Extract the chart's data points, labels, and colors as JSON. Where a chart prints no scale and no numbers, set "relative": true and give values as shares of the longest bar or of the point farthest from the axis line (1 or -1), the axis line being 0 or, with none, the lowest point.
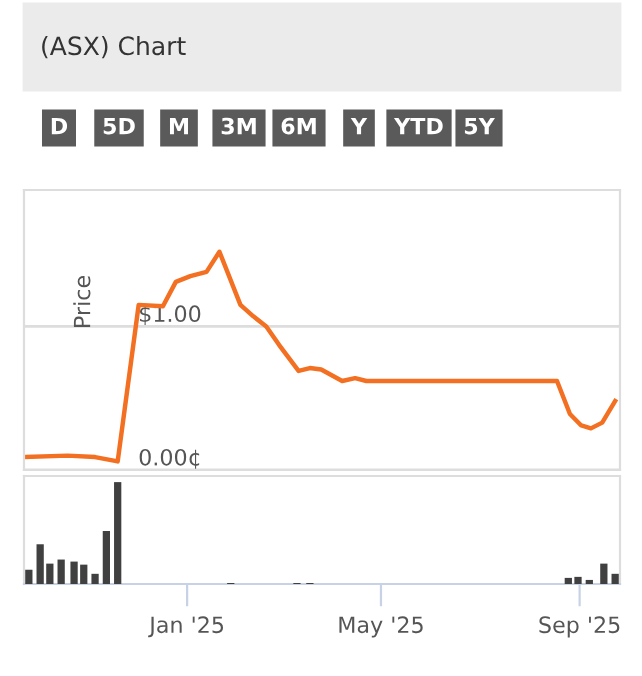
{
  "chart_data": [
    {
      "type": "line",
      "title": "(ASX) Chart",
      "ylabel": "Price",
      "annotations": [
        "D",
        "5D",
        "M",
        "3M",
        "6M",
        "Y",
        "YTD",
        "5Y"
      ],
      "x": [
        "2024-09-23",
        "2024-10-19",
        "2024-11-05",
        "2024-11-19",
        "2024-12-02",
        "2024-12-17",
        "2024-12-25",
        "2025-01-03",
        "2025-01-13",
        "2025-01-21",
        "2025-02-03",
        "2025-02-11",
        "2025-02-19",
        "2025-02-27",
        "2025-03-11",
        "2025-03-18",
        "2025-03-25",
        "2025-04-07",
        "2025-04-15",
        "2025-04-22",
        "2025-08-18",
        "2025-08-26",
        "2025-09-02",
        "2025-09-08",
        "2025-09-15",
        "2025-09-23"
      ],
      "series": [
        {
          "color": "#f36f21",
          "values": [
            0.09,
            0.1,
            0.09,
            0.06,
            1.15,
            1.14,
            1.31,
            1.35,
            1.38,
            1.52,
            1.15,
            1.07,
            1.0,
            0.87,
            0.69,
            0.71,
            0.7,
            0.62,
            0.64,
            0.62,
            0.62,
            0.39,
            0.31,
            0.29,
            0.33,
            0.48
          ]
        }
      ],
      "xlim": [
        "2024-09-22",
        "2025-09-26"
      ],
      "ylim": [
        0,
        1.95
      ],
      "yticks": [
        {
          "value": 0,
          "label": "0.00¢"
        },
        {
          "value": 1,
          "label": "$1.00"
        }
      ],
      "grid": "y",
      "tick_labels": "y",
      "line_style": "solid",
      "marker": "none"
    },
    {
      "type": "bar",
      "relative": true,
      "x": [
        "2024-09-25",
        "2024-10-02",
        "2024-10-08",
        "2024-10-15",
        "2024-10-23",
        "2024-10-29",
        "2024-11-05",
        "2024-11-12",
        "2024-11-19",
        "2025-01-28",
        "2025-03-10",
        "2025-03-18",
        "2025-08-25",
        "2025-08-31",
        "2025-09-07",
        "2025-09-16",
        "2025-09-23"
      ],
      "series": [
        {
          "color": "#404040",
          "values": [
            0.14,
            0.39,
            0.2,
            0.24,
            0.22,
            0.19,
            0.1,
            0.52,
            1,
            0.01,
            0.01,
            0.01,
            0.06,
            0.07,
            0.04,
            0.2,
            0.1
          ]
        }
      ],
      "xlim": [
        "2024-09-22",
        "2025-09-26"
      ],
      "xticks": [
        {
          "value": "2025-01-01",
          "label": "Jan '25"
        },
        {
          "value": "2025-05-01",
          "label": "May '25"
        },
        {
          "value": "2025-09-01",
          "label": "Sep '25"
        }
      ],
      "grid": false,
      "tick_labels": "x"
    }
  ]
}
